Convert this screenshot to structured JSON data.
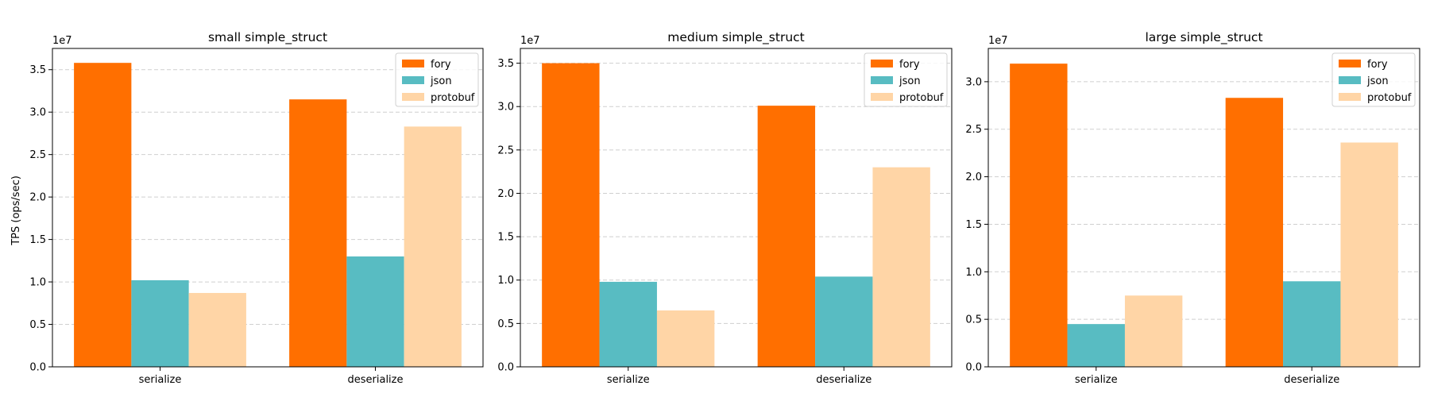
{
  "figure": {
    "ylabel": "TPS (ops/sec)"
  },
  "chart_data": [
    {
      "type": "bar",
      "title": "small simple_struct",
      "xlabel": "",
      "ylabel": "TPS (ops/sec)",
      "offset_label": "1e7",
      "categories": [
        "serialize",
        "deserialize"
      ],
      "ylim": [
        0,
        37500000
      ],
      "yticks": [
        0,
        5000000,
        10000000,
        15000000,
        20000000,
        25000000,
        30000000,
        35000000
      ],
      "ytick_labels": [
        "0.0",
        "0.5",
        "1.0",
        "1.5",
        "2.0",
        "2.5",
        "3.0",
        "3.5"
      ],
      "grid": "y-dashed",
      "legend_position": "top-right",
      "series": [
        {
          "name": "fory",
          "color": "#ff6f00",
          "values": [
            35800000,
            31500000
          ]
        },
        {
          "name": "json",
          "color": "#58bcc2",
          "values": [
            10200000,
            13000000
          ]
        },
        {
          "name": "protobuf",
          "color": "#ffd5a6",
          "values": [
            8700000,
            28300000
          ]
        }
      ]
    },
    {
      "type": "bar",
      "title": "medium simple_struct",
      "xlabel": "",
      "ylabel": "",
      "offset_label": "1e7",
      "categories": [
        "serialize",
        "deserialize"
      ],
      "ylim": [
        0,
        36700000
      ],
      "yticks": [
        0,
        5000000,
        10000000,
        15000000,
        20000000,
        25000000,
        30000000,
        35000000
      ],
      "ytick_labels": [
        "0.0",
        "0.5",
        "1.0",
        "1.5",
        "2.0",
        "2.5",
        "3.0",
        "3.5"
      ],
      "grid": "y-dashed",
      "legend_position": "top-right",
      "series": [
        {
          "name": "fory",
          "color": "#ff6f00",
          "values": [
            35000000,
            30100000
          ]
        },
        {
          "name": "json",
          "color": "#58bcc2",
          "values": [
            9800000,
            10400000
          ]
        },
        {
          "name": "protobuf",
          "color": "#ffd5a6",
          "values": [
            6500000,
            23000000
          ]
        }
      ]
    },
    {
      "type": "bar",
      "title": "large simple_struct",
      "xlabel": "",
      "ylabel": "",
      "offset_label": "1e7",
      "categories": [
        "serialize",
        "deserialize"
      ],
      "ylim": [
        0,
        33500000
      ],
      "yticks": [
        0,
        5000000,
        10000000,
        15000000,
        20000000,
        25000000,
        30000000
      ],
      "ytick_labels": [
        "0.0",
        "0.5",
        "1.0",
        "1.5",
        "2.0",
        "2.5",
        "3.0"
      ],
      "grid": "y-dashed",
      "legend_position": "top-right",
      "series": [
        {
          "name": "fory",
          "color": "#ff6f00",
          "values": [
            31900000,
            28300000
          ]
        },
        {
          "name": "json",
          "color": "#58bcc2",
          "values": [
            4500000,
            9000000
          ]
        },
        {
          "name": "protobuf",
          "color": "#ffd5a6",
          "values": [
            7500000,
            23600000
          ]
        }
      ]
    }
  ]
}
